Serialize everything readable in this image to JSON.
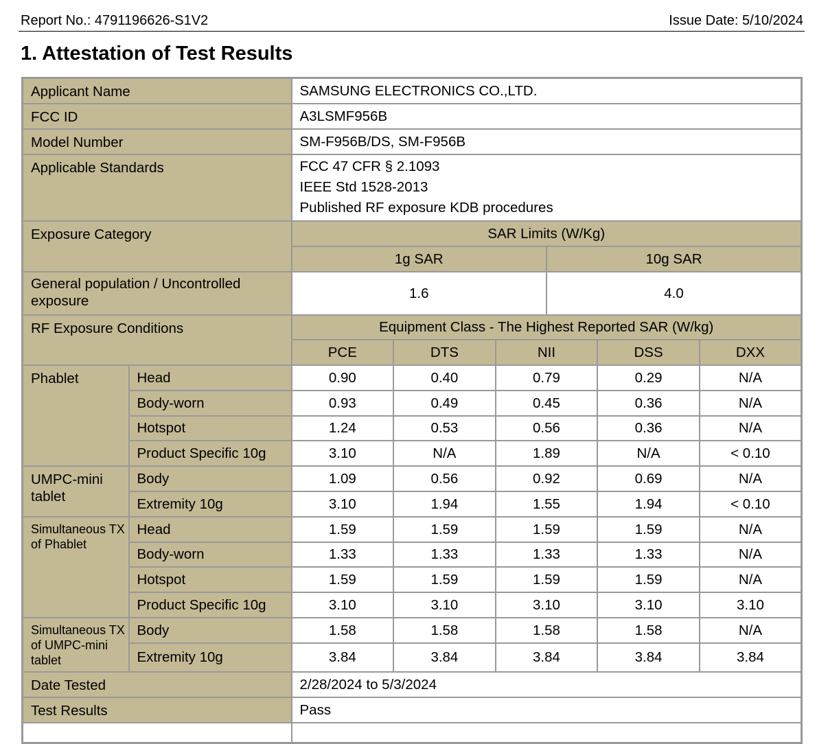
{
  "header": {
    "report_no": "Report No.: 4791196626-S1V2",
    "issue_date": "Issue Date: 5/10/2024"
  },
  "title": "1. Attestation of Test Results",
  "info": {
    "applicant_label": "Applicant Name",
    "applicant": "SAMSUNG ELECTRONICS CO.,LTD.",
    "fcc_label": "FCC ID",
    "fcc": "A3LSMF956B",
    "model_label": "Model Number",
    "model": "SM-F956B/DS, SM-F956B",
    "standards_label": "Applicable Standards",
    "standards": [
      "FCC 47 CFR § 2.1093",
      "IEEE Std 1528-2013",
      "Published RF exposure KDB procedures"
    ]
  },
  "limits": {
    "category_label": "Exposure Category",
    "header": "SAR Limits (W/Kg)",
    "col1": "1g SAR",
    "col2": "10g SAR",
    "row_label": "General population / Uncontrolled exposure",
    "v1": "1.6",
    "v2": "4.0"
  },
  "results": {
    "conditions_label": "RF Exposure Conditions",
    "header": "Equipment Class - The Highest Reported SAR (W/kg)",
    "columns": [
      "PCE",
      "DTS",
      "NII",
      "DSS",
      "DXX"
    ],
    "groups": [
      {
        "name": "Phablet",
        "rows": [
          {
            "cond": "Head",
            "values": [
              "0.90",
              "0.40",
              "0.79",
              "0.29",
              "N/A"
            ]
          },
          {
            "cond": "Body-worn",
            "values": [
              "0.93",
              "0.49",
              "0.45",
              "0.36",
              "N/A"
            ]
          },
          {
            "cond": "Hotspot",
            "values": [
              "1.24",
              "0.53",
              "0.56",
              "0.36",
              "N/A"
            ]
          },
          {
            "cond": "Product Specific 10g",
            "values": [
              "3.10",
              "N/A",
              "1.89",
              "N/A",
              "< 0.10"
            ]
          }
        ]
      },
      {
        "name": "UMPC-mini tablet",
        "rows": [
          {
            "cond": "Body",
            "values": [
              "1.09",
              "0.56",
              "0.92",
              "0.69",
              "N/A"
            ]
          },
          {
            "cond": "Extremity 10g",
            "values": [
              "3.10",
              "1.94",
              "1.55",
              "1.94",
              "< 0.10"
            ]
          }
        ]
      },
      {
        "name": "Simultaneous TX of Phablet",
        "rows": [
          {
            "cond": "Head",
            "values": [
              "1.59",
              "1.59",
              "1.59",
              "1.59",
              "N/A"
            ]
          },
          {
            "cond": "Body-worn",
            "values": [
              "1.33",
              "1.33",
              "1.33",
              "1.33",
              "N/A"
            ]
          },
          {
            "cond": "Hotspot",
            "values": [
              "1.59",
              "1.59",
              "1.59",
              "1.59",
              "N/A"
            ]
          },
          {
            "cond": "Product Specific 10g",
            "values": [
              "3.10",
              "3.10",
              "3.10",
              "3.10",
              "3.10"
            ]
          }
        ]
      },
      {
        "name": "Simultaneous TX of UMPC-mini tablet",
        "rows": [
          {
            "cond": "Body",
            "values": [
              "1.58",
              "1.58",
              "1.58",
              "1.58",
              "N/A"
            ]
          },
          {
            "cond": "Extremity 10g",
            "values": [
              "3.84",
              "3.84",
              "3.84",
              "3.84",
              "3.84"
            ]
          }
        ]
      }
    ]
  },
  "footer": {
    "date_label": "Date Tested",
    "date": "2/28/2024 to 5/3/2024",
    "result_label": "Test Results",
    "result": "Pass"
  }
}
